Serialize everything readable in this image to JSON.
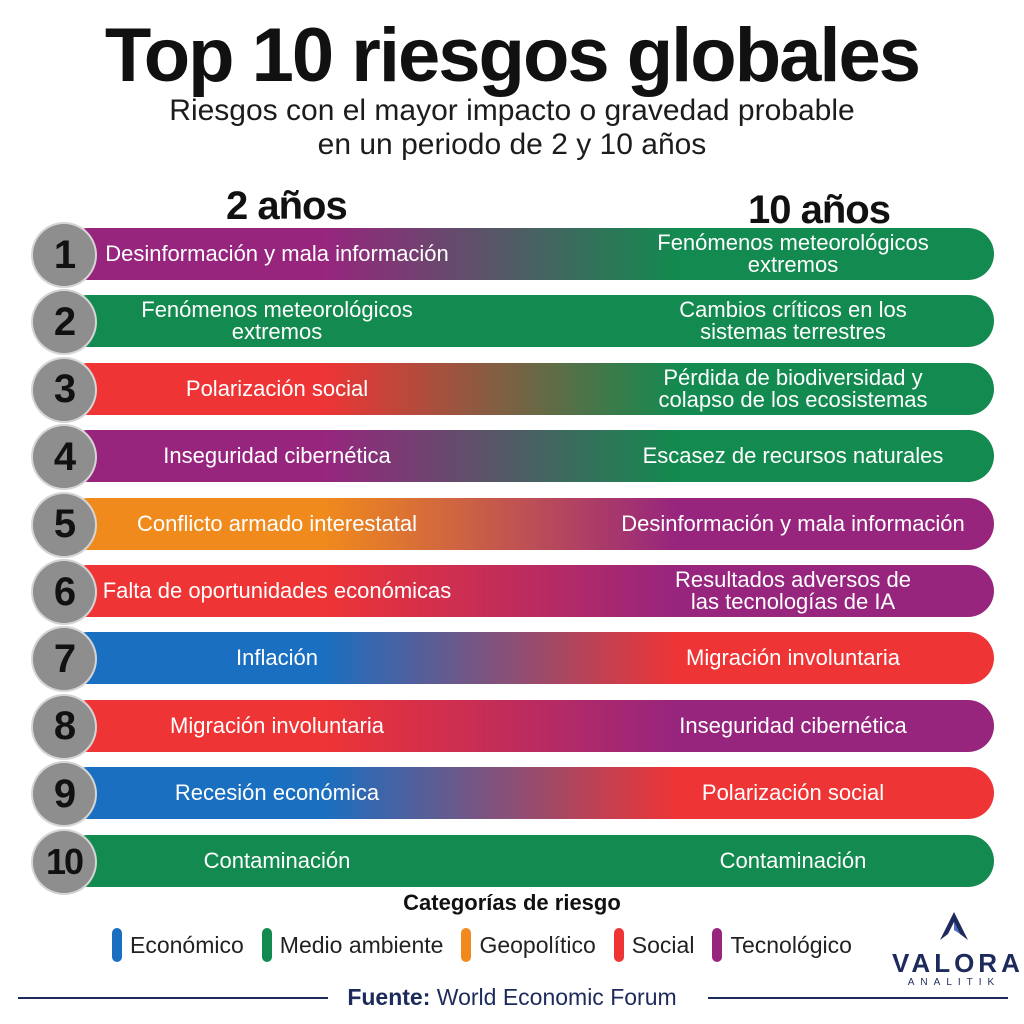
{
  "title": "Top 10 riesgos globales",
  "subtitle_line1": "Riesgos con el mayor impacto o gravedad probable",
  "subtitle_line2": "en un periodo de 2 y 10 años",
  "col_left": "2 años",
  "col_right": "10 años",
  "colors": {
    "economico": "#1a6fc0",
    "medio_ambiente": "#138a4f",
    "geopolitico": "#f08a1c",
    "social": "#ee3435",
    "tecnologico": "#97257e"
  },
  "rows": [
    {
      "rank": "1",
      "left": "Desinformación y mala información",
      "right_line1": "Fenómenos meteorológicos",
      "right_line2": "extremos",
      "left_color": "tecnologico",
      "right_color": "medio_ambiente"
    },
    {
      "rank": "2",
      "left_line1": "Fenómenos meteorológicos",
      "left_line2": "extremos",
      "right_line1": "Cambios críticos en los",
      "right_line2": "sistemas terrestres",
      "left_color": "medio_ambiente",
      "right_color": "medio_ambiente"
    },
    {
      "rank": "3",
      "left": "Polarización social",
      "right_line1": "Pérdida de biodiversidad y",
      "right_line2": "colapso de los ecosistemas",
      "left_color": "social",
      "right_color": "medio_ambiente"
    },
    {
      "rank": "4",
      "left": "Inseguridad cibernética",
      "right": "Escasez de recursos naturales",
      "left_color": "tecnologico",
      "right_color": "medio_ambiente"
    },
    {
      "rank": "5",
      "left": "Conflicto armado interestatal",
      "right": "Desinformación y mala información",
      "left_color": "geopolitico",
      "right_color": "tecnologico"
    },
    {
      "rank": "6",
      "left": "Falta de oportunidades económicas",
      "right_line1": "Resultados adversos de",
      "right_line2": "las tecnologías de IA",
      "left_color": "social",
      "right_color": "tecnologico"
    },
    {
      "rank": "7",
      "left": "Inflación",
      "right": "Migración involuntaria",
      "left_color": "economico",
      "right_color": "social"
    },
    {
      "rank": "8",
      "left": "Migración involuntaria",
      "right": "Inseguridad cibernética",
      "left_color": "social",
      "right_color": "tecnologico"
    },
    {
      "rank": "9",
      "left": "Recesión económica",
      "right": "Polarización social",
      "left_color": "economico",
      "right_color": "social"
    },
    {
      "rank": "10",
      "left": "Contaminación",
      "right": "Contaminación",
      "left_color": "medio_ambiente",
      "right_color": "medio_ambiente"
    }
  ],
  "legend_title": "Categorías de riesgo",
  "legend": [
    {
      "label": "Económico",
      "color": "economico"
    },
    {
      "label": "Medio ambiente",
      "color": "medio_ambiente"
    },
    {
      "label": "Geopolítico",
      "color": "geopolitico"
    },
    {
      "label": "Social",
      "color": "social"
    },
    {
      "label": "Tecnológico",
      "color": "tecnologico"
    }
  ],
  "logo_word": "VALORA",
  "logo_sub": "ANALITIK",
  "source_label": "Fuente:",
  "source_text": "World Economic Forum"
}
